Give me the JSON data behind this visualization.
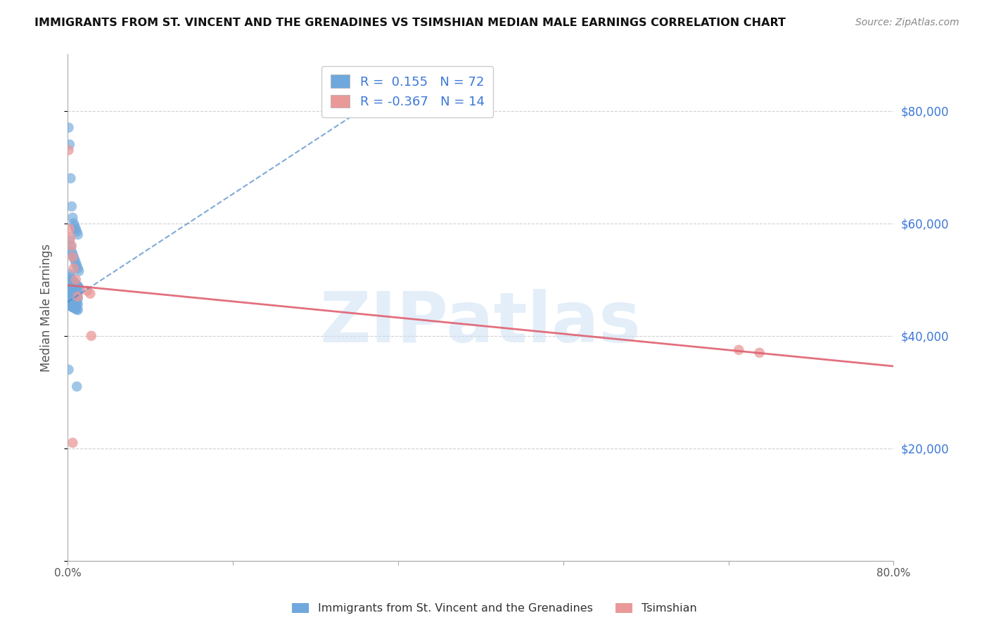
{
  "title": "IMMIGRANTS FROM ST. VINCENT AND THE GRENADINES VS TSIMSHIAN MEDIAN MALE EARNINGS CORRELATION CHART",
  "source": "Source: ZipAtlas.com",
  "ylabel": "Median Male Earnings",
  "watermark": "ZIPatlas",
  "blue_label": "Immigrants from St. Vincent and the Grenadines",
  "pink_label": "Tsimshian",
  "blue_R": 0.155,
  "blue_N": 72,
  "pink_R": -0.367,
  "pink_N": 14,
  "blue_color": "#6fa8dc",
  "pink_color": "#ea9999",
  "blue_trend_color": "#4a86c8",
  "pink_trend_color": "#e06070",
  "xlim": [
    0.0,
    0.8
  ],
  "ylim": [
    0,
    90000
  ],
  "yticks": [
    0,
    20000,
    40000,
    60000,
    80000
  ],
  "ytick_labels": [
    "",
    "$20,000",
    "$40,000",
    "$60,000",
    "$80,000"
  ],
  "xticks": [
    0.0,
    0.16,
    0.32,
    0.48,
    0.64,
    0.8
  ],
  "xtick_labels": [
    "0.0%",
    "",
    "",
    "",
    "",
    "80.0%"
  ],
  "blue_x": [
    0.001,
    0.002,
    0.003,
    0.004,
    0.005,
    0.006,
    0.007,
    0.008,
    0.009,
    0.01,
    0.002,
    0.003,
    0.004,
    0.005,
    0.006,
    0.007,
    0.008,
    0.009,
    0.01,
    0.011,
    0.002,
    0.003,
    0.004,
    0.005,
    0.006,
    0.007,
    0.008,
    0.009,
    0.01,
    0.011,
    0.001,
    0.002,
    0.003,
    0.004,
    0.005,
    0.006,
    0.007,
    0.008,
    0.009,
    0.01,
    0.001,
    0.002,
    0.003,
    0.004,
    0.005,
    0.006,
    0.007,
    0.008,
    0.009,
    0.01,
    0.001,
    0.002,
    0.003,
    0.004,
    0.005,
    0.006,
    0.007,
    0.008,
    0.009,
    0.01,
    0.001,
    0.002,
    0.003,
    0.004,
    0.005,
    0.006,
    0.007,
    0.008,
    0.009,
    0.01,
    0.001,
    0.009
  ],
  "blue_y": [
    77000,
    74000,
    68000,
    63000,
    61000,
    60000,
    59500,
    59000,
    58500,
    58000,
    57000,
    56000,
    55000,
    54500,
    54000,
    53500,
    53000,
    52500,
    52000,
    51500,
    51000,
    50500,
    50000,
    49800,
    49600,
    49400,
    49200,
    49000,
    48800,
    48600,
    48500,
    48400,
    48300,
    48200,
    48100,
    48000,
    47900,
    47800,
    47700,
    47600,
    47500,
    47400,
    47300,
    47200,
    47100,
    47000,
    46900,
    46800,
    46700,
    46600,
    46500,
    46400,
    46300,
    46200,
    46100,
    46000,
    45900,
    45800,
    45700,
    45600,
    45500,
    45400,
    45300,
    45200,
    45100,
    45000,
    44900,
    44800,
    44700,
    44600,
    34000,
    31000
  ],
  "pink_x": [
    0.001,
    0.002,
    0.003,
    0.004,
    0.005,
    0.006,
    0.008,
    0.019,
    0.022,
    0.023,
    0.005,
    0.01,
    0.65,
    0.67
  ],
  "pink_y": [
    73000,
    59000,
    57500,
    56000,
    54000,
    52000,
    50000,
    48000,
    47500,
    40000,
    21000,
    47000,
    37500,
    37000
  ],
  "blue_trend_x": [
    0.0,
    0.3
  ],
  "blue_trend_y_intercept": 46000,
  "blue_trend_slope": 120000,
  "pink_trend_x": [
    0.0,
    0.8
  ],
  "pink_trend_y_intercept": 49000,
  "pink_trend_slope": -18000
}
